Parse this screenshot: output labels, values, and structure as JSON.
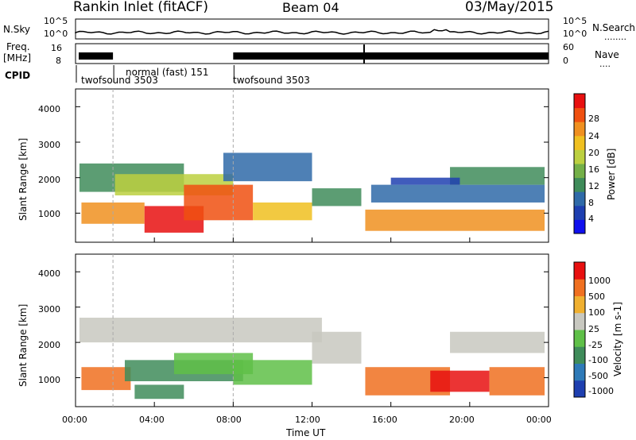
{
  "header": {
    "station": "Rankin Inlet (fitACF)",
    "beam": "Beam 04",
    "date": "03/May/2015"
  },
  "left_labels": {
    "nsky": "N.Sky",
    "freq": "Freq.",
    "freq_unit": "[MHz]",
    "cpid": "CPID"
  },
  "right_labels": {
    "nsearch": "N.Search",
    "nsearch_style": "........",
    "nave": "Nave",
    "nave_style": "...."
  },
  "noise_axis": {
    "left_ticks": [
      "10^5",
      "10^0"
    ],
    "right_ticks": [
      "10^5",
      "10^0"
    ]
  },
  "freq_axis": {
    "left_ticks": [
      "16",
      "8"
    ],
    "right_ticks": [
      "60",
      "0"
    ]
  },
  "cpid_segments": [
    {
      "label": "twofsound 3503",
      "start_hour": 0.0
    },
    {
      "label": "normal (fast) 151",
      "start_hour": 1.9
    },
    {
      "label": "twofsound 3503",
      "start_hour": 8.0
    }
  ],
  "x_axis": {
    "title": "Time UT",
    "ticks": [
      "00:00",
      "04:00",
      "08:00",
      "12:00",
      "16:00",
      "20:00",
      "00:00"
    ]
  },
  "colors": {
    "power": [
      "#1010ee",
      "#1e3fb0",
      "#2f6aa8",
      "#3f8c5a",
      "#74b048",
      "#bcd040",
      "#f0c020",
      "#f09020",
      "#f05010",
      "#e81010"
    ],
    "velocity": [
      "#1e3fb0",
      "#2e7ab8",
      "#3f8c5a",
      "#5fc048",
      "#c8c8c0",
      "#f0b030",
      "#f07020",
      "#e81010"
    ]
  },
  "chart_data": [
    {
      "type": "heatmap",
      "title": "",
      "xlabel": "",
      "ylabel": "Slant Range [km]",
      "y_ticks": [
        "1000",
        "2000",
        "3000",
        "4000"
      ],
      "colorbar_label": "Power [dB]",
      "colorbar_ticks": [
        "4",
        "8",
        "12",
        "16",
        "20",
        "24",
        "28"
      ],
      "xlim_hours": [
        0,
        24
      ],
      "ylim_km": [
        180,
        4500
      ],
      "bands": [
        {
          "t0": 0.2,
          "t1": 5.5,
          "r0": 1600,
          "r1": 2400,
          "level": 3
        },
        {
          "t0": 2.0,
          "t1": 8.0,
          "r0": 1500,
          "r1": 2100,
          "level": 5
        },
        {
          "t0": 0.3,
          "t1": 3.5,
          "r0": 700,
          "r1": 1300,
          "level": 7
        },
        {
          "t0": 3.5,
          "t1": 6.5,
          "r0": 450,
          "r1": 1200,
          "level": 9
        },
        {
          "t0": 5.5,
          "t1": 9.0,
          "r0": 800,
          "r1": 1800,
          "level": 8
        },
        {
          "t0": 9.0,
          "t1": 12.0,
          "r0": 800,
          "r1": 1300,
          "level": 6
        },
        {
          "t0": 7.5,
          "t1": 12.0,
          "r0": 1900,
          "r1": 2700,
          "level": 2
        },
        {
          "t0": 12.0,
          "t1": 14.5,
          "r0": 1200,
          "r1": 1700,
          "level": 3
        },
        {
          "t0": 14.7,
          "t1": 23.8,
          "r0": 500,
          "r1": 1100,
          "level": 7
        },
        {
          "t0": 15.0,
          "t1": 23.8,
          "r0": 1300,
          "r1": 1800,
          "level": 2
        },
        {
          "t0": 19.0,
          "t1": 23.8,
          "r0": 1800,
          "r1": 2300,
          "level": 3
        },
        {
          "t0": 16.0,
          "t1": 19.5,
          "r0": 1800,
          "r1": 2000,
          "level": 1
        }
      ]
    },
    {
      "type": "heatmap",
      "title": "",
      "xlabel": "Time UT",
      "ylabel": "Slant Range [km]",
      "y_ticks": [
        "1000",
        "2000",
        "3000",
        "4000"
      ],
      "colorbar_label": "Velocity [m s-1]",
      "colorbar_ticks": [
        "1000",
        "500",
        "100",
        "25",
        "-25",
        "-100",
        "-500",
        "-1000"
      ],
      "xlim_hours": [
        0,
        24
      ],
      "ylim_km": [
        180,
        4500
      ],
      "bands": [
        {
          "t0": 0.2,
          "t1": 12.5,
          "r0": 2000,
          "r1": 2700,
          "level": 4
        },
        {
          "t0": 12.0,
          "t1": 14.5,
          "r0": 1400,
          "r1": 2300,
          "level": 4
        },
        {
          "t0": 19.0,
          "t1": 23.8,
          "r0": 1700,
          "r1": 2300,
          "level": 4
        },
        {
          "t0": 0.3,
          "t1": 2.8,
          "r0": 650,
          "r1": 1300,
          "level": 6
        },
        {
          "t0": 2.5,
          "t1": 8.5,
          "r0": 900,
          "r1": 1500,
          "level": 2
        },
        {
          "t0": 5.0,
          "t1": 9.0,
          "r0": 1100,
          "r1": 1700,
          "level": 3
        },
        {
          "t0": 8.0,
          "t1": 12.0,
          "r0": 800,
          "r1": 1500,
          "level": 3
        },
        {
          "t0": 3.0,
          "t1": 5.5,
          "r0": 400,
          "r1": 800,
          "level": 2
        },
        {
          "t0": 14.7,
          "t1": 19.0,
          "r0": 500,
          "r1": 1300,
          "level": 6
        },
        {
          "t0": 18.0,
          "t1": 21.0,
          "r0": 600,
          "r1": 1200,
          "level": 7
        },
        {
          "t0": 21.0,
          "t1": 23.8,
          "r0": 500,
          "r1": 1300,
          "level": 6
        }
      ]
    }
  ]
}
